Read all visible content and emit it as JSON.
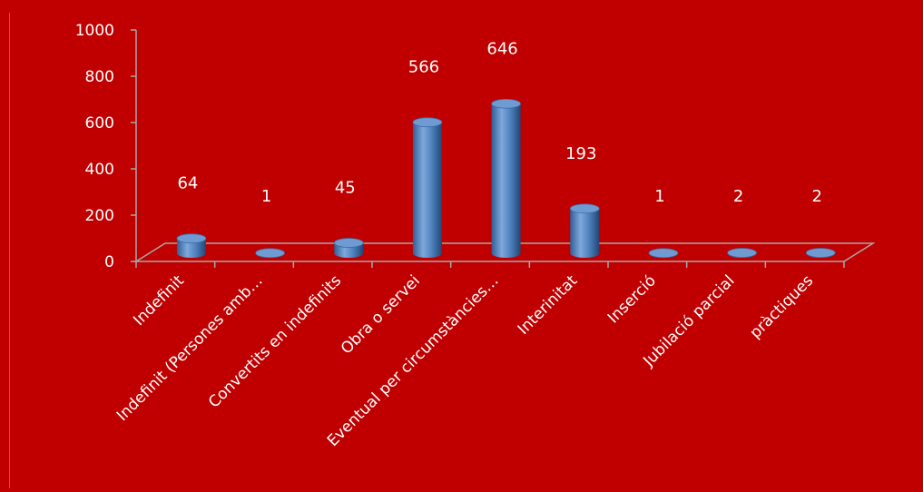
{
  "chart_data": {
    "type": "bar",
    "categories": [
      "Indefinit",
      "Indefinit (Persones amb…",
      "Convertits en indefinits",
      "Obra o servei",
      "Eventual per circumstàncies…",
      "Interinitat",
      "Inserció",
      "Jubilació parcial",
      "pràctiques"
    ],
    "values": [
      64,
      1,
      45,
      566,
      646,
      193,
      1,
      2,
      2
    ],
    "ylim": [
      0,
      1000
    ],
    "yticks": [
      0,
      200,
      400,
      600,
      800,
      1000
    ],
    "bar_color": "#4f81bd",
    "background": "#c00000",
    "style": "3d-cylinder",
    "grid": false,
    "legend": "none"
  }
}
